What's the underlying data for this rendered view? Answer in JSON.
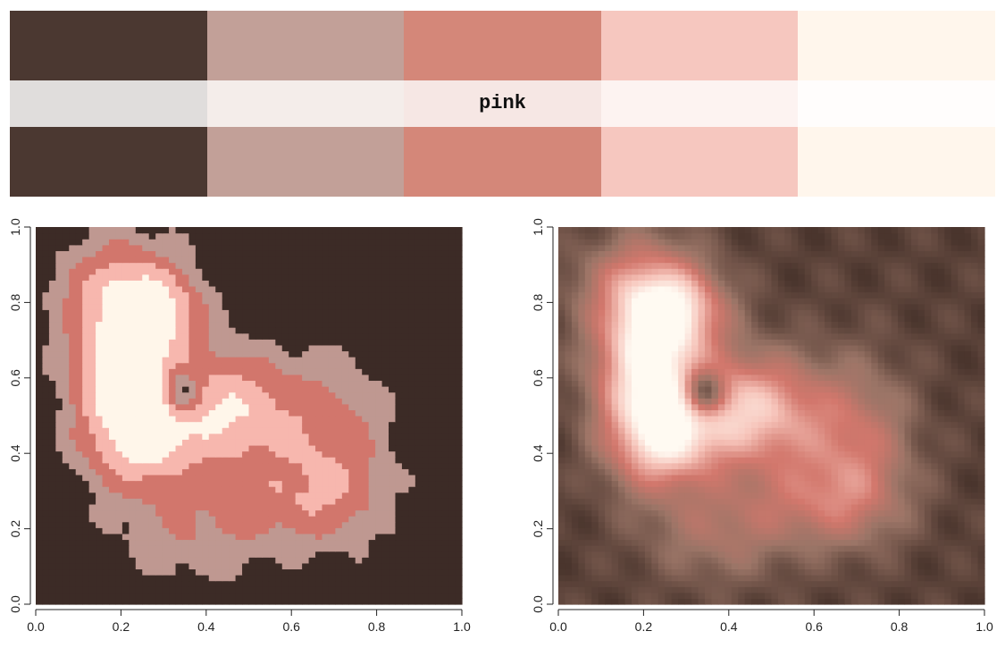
{
  "palette": {
    "name": "pink",
    "colors": [
      "#4b3831",
      "#c2a098",
      "#d48779",
      "#f6c7bf",
      "#fff6ec"
    ],
    "mid_colors": [
      "#e0dddc",
      "#f4edea",
      "#f6e7e4",
      "#fdf3f1",
      "#fffdfc"
    ]
  },
  "chart_data": [
    {
      "type": "heatmap",
      "style": "discrete",
      "palette": "pink",
      "levels": 5,
      "level_colors": [
        "#3c2b26",
        "#bf9891",
        "#d2766c",
        "#f7b7ae",
        "#fff6ea"
      ],
      "xlim": [
        0,
        1
      ],
      "ylim": [
        0,
        1
      ],
      "x_ticks": [
        "0.0",
        "0.2",
        "0.4",
        "0.6",
        "0.8",
        "1.0"
      ],
      "y_ticks": [
        "0.0",
        "0.2",
        "0.4",
        "0.6",
        "0.8",
        "1.0"
      ]
    },
    {
      "type": "heatmap",
      "style": "continuous",
      "palette": "pink",
      "xlim": [
        0,
        1
      ],
      "ylim": [
        0,
        1
      ],
      "x_ticks": [
        "0.0",
        "0.2",
        "0.4",
        "0.6",
        "0.8",
        "1.0"
      ],
      "y_ticks": [
        "0.0",
        "0.2",
        "0.4",
        "0.6",
        "0.8",
        "1.0"
      ]
    }
  ]
}
